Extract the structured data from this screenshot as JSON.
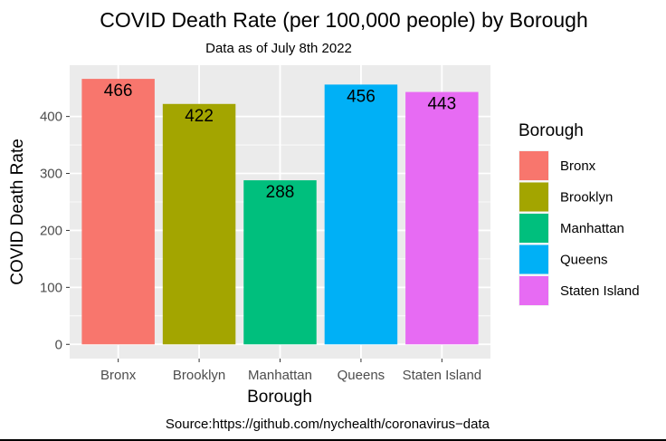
{
  "chart_data": {
    "type": "bar",
    "title": "COVID Death Rate (per 100,000 people) by Borough",
    "subtitle": "Data as of July 8th 2022",
    "caption": "Source:https://github.com/nychealth/coronavirus−data",
    "xlabel": "Borough",
    "ylabel": "COVID Death Rate",
    "categories": [
      "Bronx",
      "Brooklyn",
      "Manhattan",
      "Queens",
      "Staten Island"
    ],
    "values": [
      466,
      422,
      288,
      456,
      443
    ],
    "data_labels": [
      "466",
      "422",
      "288",
      "456",
      "443"
    ],
    "colors": [
      "#F8766D",
      "#A3A500",
      "#00BF7D",
      "#00B0F6",
      "#E76BF3"
    ],
    "ylim": [
      -25,
      490
    ],
    "yticks": [
      0,
      100,
      200,
      300,
      400
    ],
    "ytick_labels": [
      "0",
      "100",
      "200",
      "300",
      "400"
    ],
    "grid": true,
    "legend": {
      "title": "Borough",
      "position": "right",
      "entries": [
        "Bronx",
        "Brooklyn",
        "Manhattan",
        "Queens",
        "Staten Island"
      ]
    }
  }
}
